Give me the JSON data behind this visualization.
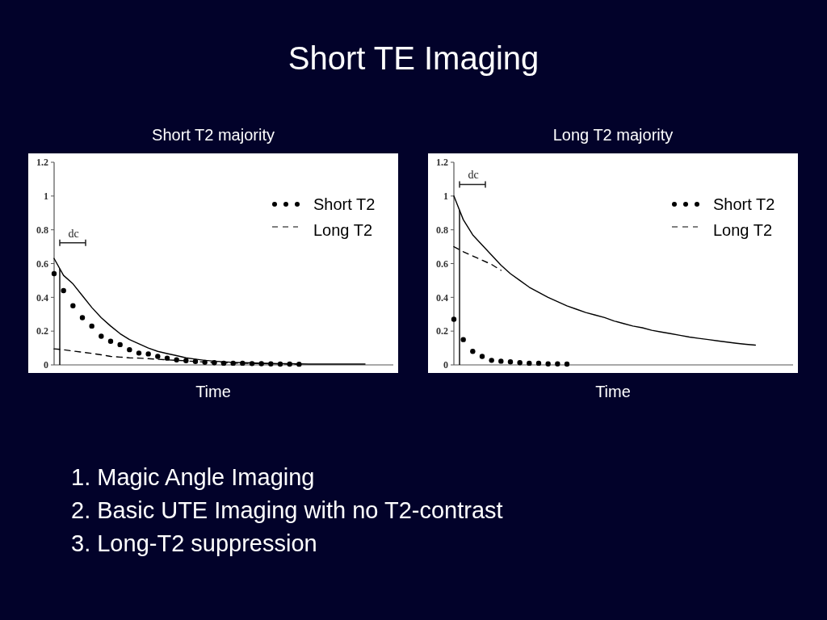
{
  "chart_data": [
    {
      "type": "line",
      "title": "Short T2 majority",
      "xlabel": "Time",
      "categories": [
        null,
        null,
        null,
        null,
        null,
        null,
        null,
        null,
        null,
        null,
        null,
        null,
        null,
        null,
        null,
        null,
        null,
        null,
        null,
        null,
        null,
        null,
        null,
        null,
        null,
        null,
        null,
        null,
        null,
        null,
        null,
        null,
        null,
        null,
        null,
        null,
        null
      ],
      "ylim": [
        0,
        1.2
      ],
      "yticks": [
        0,
        0.2,
        0.4,
        0.6,
        0.8,
        1,
        1.2
      ],
      "tick_labels": "y",
      "legend": "top right",
      "annotations": [
        "dc",
        "Short TE Imaging",
        "1. Magic Angle Imaging",
        "2. Basic UTE Imaging with no T2-contrast",
        "3. Long-T2 suppression"
      ],
      "series": [
        {
          "name": "Short T2",
          "type": "scatter",
          "marker": "circle",
          "color": "#000000",
          "values": [
            0.54,
            0.44,
            0.35,
            0.28,
            0.23,
            0.17,
            0.14,
            0.12,
            0.09,
            0.07,
            0.065,
            0.05,
            0.04,
            0.03,
            0.025,
            0.02,
            0.015,
            0.013,
            0.01,
            0.01,
            0.01,
            0.008,
            0.007,
            0.006,
            0.005,
            0.005,
            0.004,
            null,
            null,
            null,
            null,
            null,
            null,
            null,
            null,
            null,
            null
          ]
        },
        {
          "name": "Long T2",
          "line_style": "dashed",
          "color": "#000000",
          "values": [
            0.095,
            0.09,
            0.082,
            0.075,
            0.068,
            0.06,
            0.05,
            0.046,
            0.042,
            0.04,
            0.037,
            0.033,
            0.03,
            0.027,
            0.024,
            0.02,
            0.017,
            0.013,
            0.012,
            0.011,
            0.01,
            0.009,
            0.008,
            0.007,
            0.006,
            0.005,
            0.005,
            null,
            null,
            null,
            null,
            null,
            null,
            null,
            null,
            null,
            null
          ]
        },
        {
          "line_style": "solid",
          "color": "#000000",
          "values": [
            0.63,
            0.53,
            0.48,
            0.41,
            0.34,
            0.28,
            0.23,
            0.185,
            0.15,
            0.125,
            0.1,
            0.08,
            0.067,
            0.055,
            0.042,
            0.034,
            0.027,
            0.022,
            0.018,
            0.015,
            0.013,
            0.012,
            0.01,
            0.009,
            0.008,
            0.007,
            0.006,
            0.005,
            0.005,
            0.005,
            0.005,
            0.005,
            0.005,
            0.005,
            null,
            null,
            null
          ]
        }
      ]
    },
    {
      "type": "line",
      "title": "Long T2 majority",
      "xlabel": "Time",
      "categories": [
        null,
        null,
        null,
        null,
        null,
        null,
        null,
        null,
        null,
        null,
        null,
        null,
        null,
        null,
        null,
        null,
        null,
        null,
        null,
        null,
        null,
        null,
        null,
        null,
        null,
        null,
        null,
        null,
        null,
        null,
        null,
        null,
        null,
        null,
        null,
        null,
        null
      ],
      "ylim": [
        0,
        1.2
      ],
      "yticks": [
        0,
        0.2,
        0.4,
        0.6,
        0.8,
        1,
        1.2
      ],
      "tick_labels": "y",
      "legend": "top right",
      "annotations": [
        "dc"
      ],
      "series": [
        {
          "name": "Short T2",
          "type": "scatter",
          "marker": "circle",
          "color": "#000000",
          "values": [
            0.27,
            0.15,
            0.08,
            0.05,
            0.027,
            0.022,
            0.018,
            0.013,
            0.01,
            0.01,
            0.006,
            0.006,
            0.005,
            null,
            null,
            null,
            null,
            null,
            null,
            null,
            null,
            null,
            null,
            null,
            null,
            null,
            null,
            null,
            null,
            null,
            null,
            null,
            null,
            null,
            null,
            null,
            null
          ]
        },
        {
          "name": "Long T2",
          "line_style": "dashed",
          "color": "#000000",
          "values": [
            0.7,
            0.67,
            0.645,
            0.62,
            0.595,
            0.56,
            null,
            null,
            null,
            null,
            null,
            null,
            null,
            null,
            null,
            null,
            null,
            null,
            null,
            null,
            null,
            null,
            null,
            null,
            null,
            null,
            null,
            null,
            null,
            null,
            null,
            null,
            null,
            null,
            null,
            null,
            null
          ]
        },
        {
          "line_style": "solid",
          "color": "#000000",
          "values": [
            1,
            0.86,
            0.77,
            0.71,
            0.65,
            0.59,
            0.54,
            0.5,
            0.46,
            0.43,
            0.4,
            0.375,
            0.35,
            0.33,
            0.31,
            0.295,
            0.28,
            0.26,
            0.245,
            0.23,
            0.22,
            0.205,
            0.195,
            0.185,
            0.175,
            0.165,
            0.157,
            0.15,
            0.142,
            0.135,
            0.128,
            0.122,
            0.117,
            null,
            null,
            null,
            null
          ]
        }
      ]
    }
  ]
}
